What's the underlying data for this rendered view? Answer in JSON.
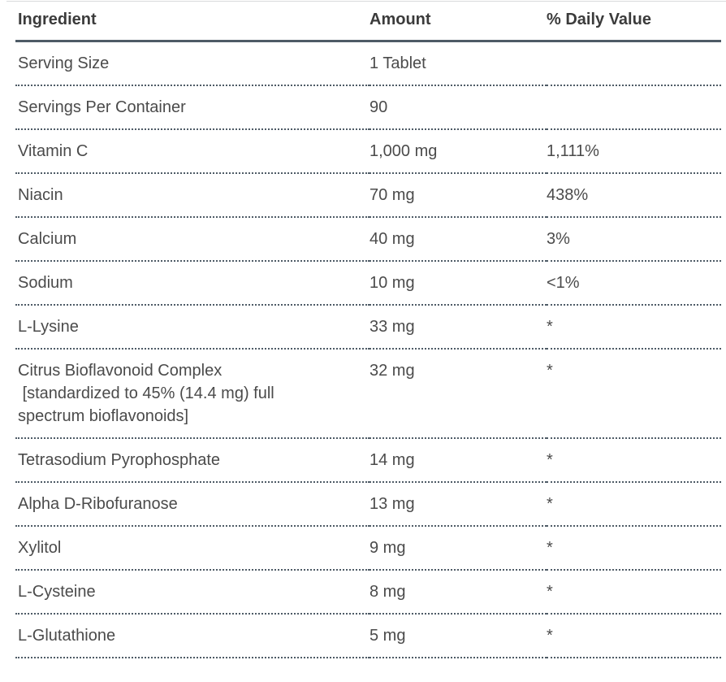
{
  "table": {
    "columns": [
      {
        "key": "ingredient",
        "label": "Ingredient"
      },
      {
        "key": "amount",
        "label": "Amount"
      },
      {
        "key": "daily_value",
        "label": "% Daily Value"
      }
    ],
    "rows": [
      {
        "ingredient": "Serving Size",
        "amount": "1 Tablet",
        "daily_value": ""
      },
      {
        "ingredient": "Servings Per Container",
        "amount": "90",
        "daily_value": ""
      },
      {
        "ingredient": "Vitamin C",
        "amount": "1,000 mg",
        "daily_value": "1,111%"
      },
      {
        "ingredient": "Niacin",
        "amount": "70 mg",
        "daily_value": "438%"
      },
      {
        "ingredient": "Calcium",
        "amount": "40 mg",
        "daily_value": "3%"
      },
      {
        "ingredient": "Sodium",
        "amount": "10 mg",
        "daily_value": "<1%"
      },
      {
        "ingredient": "L-Lysine",
        "amount": "33 mg",
        "daily_value": "*"
      },
      {
        "ingredient": "Citrus Bioflavonoid Complex\n [standardized to 45% (14.4 mg) full\nspectrum bioflavonoids]",
        "amount": "32 mg",
        "daily_value": "*"
      },
      {
        "ingredient": "Tetrasodium Pyrophosphate",
        "amount": "14 mg",
        "daily_value": "*"
      },
      {
        "ingredient": "Alpha D-Ribofuranose",
        "amount": "13 mg",
        "daily_value": "*"
      },
      {
        "ingredient": "Xylitol",
        "amount": "9 mg",
        "daily_value": "*"
      },
      {
        "ingredient": "L-Cysteine",
        "amount": "8 mg",
        "daily_value": "*"
      },
      {
        "ingredient": "L-Glutathione",
        "amount": "5 mg",
        "daily_value": "*"
      }
    ],
    "colors": {
      "rule_color": "#4e5b66",
      "header_text": "#3b3b3b",
      "body_text": "#4b4b4b",
      "top_border": "#d9dadb"
    }
  }
}
